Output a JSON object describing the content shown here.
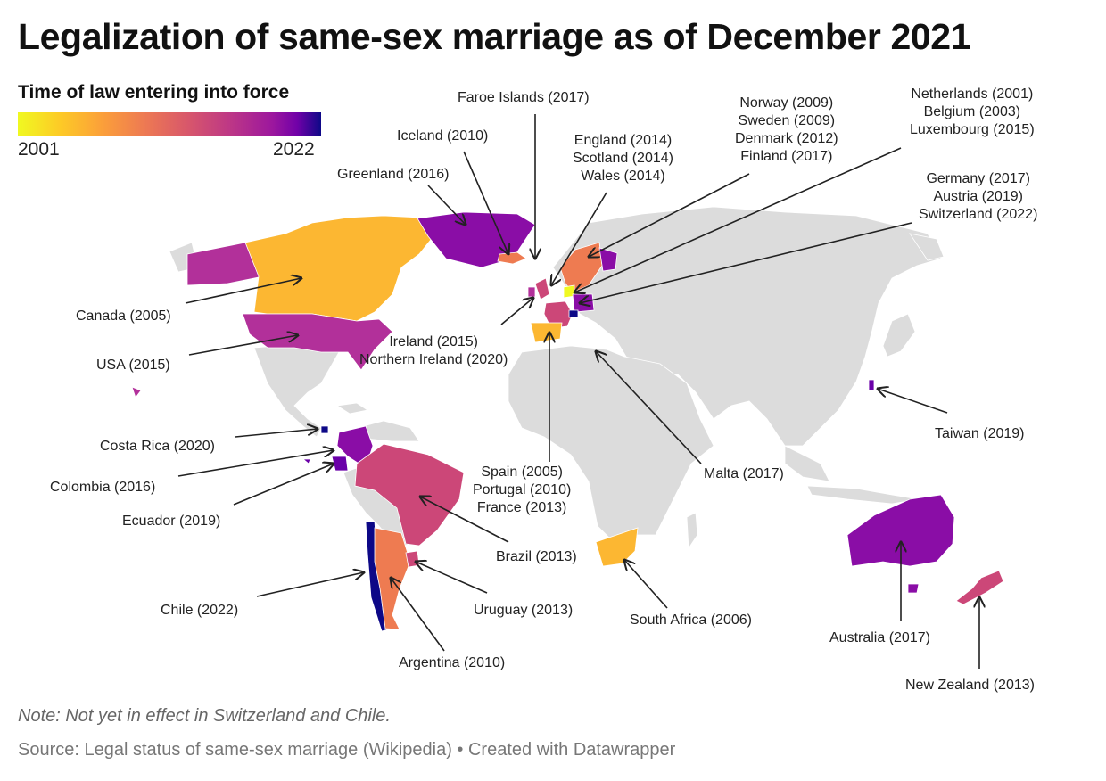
{
  "title": "Legalization of same-sex marriage as of December 2021",
  "legend": {
    "title": "Time of law entering into force",
    "min_label": "2001",
    "max_label": "2022"
  },
  "labels": {
    "faroe": "Faroe Islands (2017)",
    "iceland": "Iceland (2010)",
    "greenland": "Greenland (2016)",
    "uk": [
      "England (2014)",
      "Scotland (2014)",
      "Wales (2014)"
    ],
    "nordic": [
      "Norway (2009)",
      "Sweden (2009)",
      "Denmark (2012)",
      "Finland (2017)"
    ],
    "benelux": [
      "Netherlands (2001)",
      "Belgium (2003)",
      "Luxembourg (2015)"
    ],
    "dach": [
      "Germany (2017)",
      "Austria (2019)",
      "Switzerland (2022)"
    ],
    "canada": "Canada (2005)",
    "usa": "USA (2015)",
    "ireland": [
      "Ireland (2015)",
      "Northern Ireland (2020)"
    ],
    "taiwan": "Taiwan (2019)",
    "costa_rica": "Costa Rica (2020)",
    "colombia": "Colombia (2016)",
    "ecuador": "Ecuador (2019)",
    "iberia": [
      "Spain (2005)",
      "Portugal (2010)",
      "France (2013)"
    ],
    "malta": "Malta (2017)",
    "brazil": "Brazil (2013)",
    "chile": "Chile (2022)",
    "uruguay": "Uruguay (2013)",
    "south_africa": "South Africa (2006)",
    "argentina": "Argentina (2010)",
    "australia": "Australia (2017)",
    "new_zealand": "New Zealand (2013)"
  },
  "note": "Note: Not yet in effect in Switzerland and Chile.",
  "source": "Source: Legal status of same-sex marriage (Wikipedia) • Created with Datawrapper",
  "colors": {
    "land": "#dcdcdc",
    "c2001": "#f0f921",
    "c2005": "#fcb732",
    "c2010": "#ee7b51",
    "c2013": "#cc4778",
    "c2015": "#b2309a",
    "c2017": "#8a0da6",
    "c2019": "#6a00a8",
    "c2022": "#0d0887"
  }
}
